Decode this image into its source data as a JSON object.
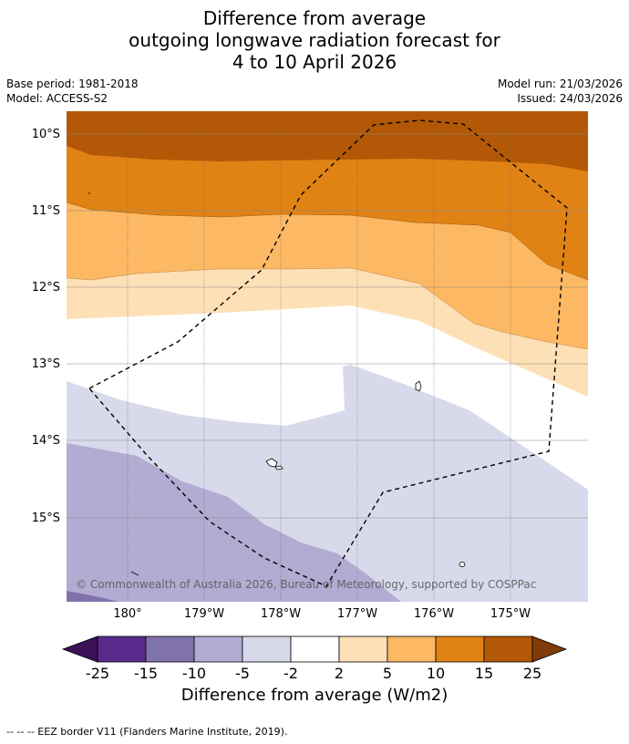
{
  "title": {
    "line1": "Difference from average",
    "line2": "outgoing longwave radiation forecast for",
    "line3": "4 to 10 April 2026"
  },
  "meta": {
    "base_period": "Base period: 1981-2018",
    "model": "Model: ACCESS-S2",
    "model_run": "Model run: 21/03/2026",
    "issued": "Issued: 24/03/2026"
  },
  "map": {
    "lat_labels": [
      "10°S",
      "11°S",
      "12°S",
      "13°S",
      "14°S",
      "15°S"
    ],
    "lon_labels": [
      "180°",
      "179°W",
      "178°W",
      "177°W",
      "176°W",
      "175°W"
    ],
    "copyright": "© Commonwealth of Australia 2026, Bureau of Meteorology, supported by COSPPac"
  },
  "colorbar": {
    "tick_labels": [
      "-25",
      "-15",
      "-10",
      "-5",
      "-2",
      "2",
      "5",
      "10",
      "15",
      "25"
    ],
    "colors": {
      "under": "#3b1157",
      "b1": "#5b2a8c",
      "b2": "#8073ac",
      "b3": "#b2abd2",
      "b4": "#d8daeb",
      "b5": "#ffffff",
      "b6": "#fee0b6",
      "b7": "#fdb863",
      "b8": "#e08214",
      "b9": "#b35806",
      "over": "#7f3b08"
    },
    "label": "Difference from average (W/m2)"
  },
  "footer": "--  --  -- EEZ border V11 (Flanders Marine Institute, 2019)."
}
